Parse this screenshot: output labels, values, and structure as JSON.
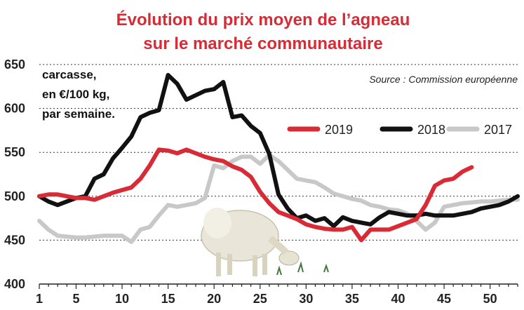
{
  "chart_data": {
    "type": "line",
    "title": "Évolution du prix moyen de l’agneau",
    "subtitle": "sur le marché communautaire",
    "unit_note": [
      "carcasse,",
      "en €/100 kg,",
      "par semaine."
    ],
    "source": "Source : Commission européenne",
    "xlim": [
      1,
      53
    ],
    "ylim": [
      400,
      650
    ],
    "x_ticks": [
      1,
      5,
      10,
      15,
      20,
      25,
      30,
      35,
      40,
      45,
      50
    ],
    "y_ticks": [
      400,
      450,
      500,
      550,
      600,
      650
    ],
    "grid": "horizontal",
    "legend_position": "top-right",
    "series": [
      {
        "name": "2017",
        "color": "#c8c8c8",
        "x": [
          1,
          2,
          3,
          4,
          5,
          6,
          7,
          8,
          9,
          10,
          11,
          12,
          13,
          14,
          15,
          16,
          17,
          18,
          19,
          20,
          21,
          22,
          23,
          24,
          25,
          26,
          27,
          28,
          29,
          30,
          31,
          32,
          33,
          34,
          35,
          36,
          37,
          38,
          39,
          40,
          41,
          42,
          43,
          44,
          45,
          46,
          47,
          48,
          49,
          50,
          51,
          52,
          53
        ],
        "values": [
          472,
          462,
          455,
          454,
          453,
          453,
          454,
          455,
          455,
          455,
          448,
          462,
          465,
          478,
          490,
          488,
          490,
          492,
          498,
          535,
          532,
          540,
          545,
          545,
          537,
          547,
          540,
          530,
          520,
          518,
          516,
          510,
          503,
          500,
          497,
          495,
          490,
          488,
          485,
          484,
          480,
          472,
          462,
          470,
          488,
          490,
          492,
          493,
          494,
          494,
          495,
          496,
          496
        ]
      },
      {
        "name": "2018",
        "color": "#111111",
        "x": [
          1,
          2,
          3,
          4,
          5,
          6,
          7,
          8,
          9,
          10,
          11,
          12,
          13,
          14,
          15,
          16,
          17,
          18,
          19,
          20,
          21,
          22,
          23,
          24,
          25,
          26,
          27,
          28,
          29,
          30,
          31,
          32,
          33,
          34,
          35,
          36,
          37,
          38,
          39,
          40,
          41,
          42,
          43,
          44,
          45,
          46,
          47,
          48,
          49,
          50,
          51,
          52,
          53
        ],
        "values": [
          500,
          494,
          490,
          494,
          498,
          500,
          520,
          525,
          543,
          555,
          568,
          590,
          595,
          598,
          638,
          628,
          610,
          615,
          620,
          622,
          630,
          590,
          592,
          580,
          572,
          548,
          502,
          486,
          475,
          478,
          472,
          475,
          466,
          476,
          472,
          470,
          468,
          476,
          482,
          480,
          478,
          478,
          480,
          478,
          478,
          478,
          480,
          482,
          486,
          488,
          490,
          494,
          500
        ]
      },
      {
        "name": "2019",
        "color": "#d92b36",
        "x": [
          1,
          2,
          3,
          4,
          5,
          6,
          7,
          8,
          9,
          10,
          11,
          12,
          13,
          14,
          15,
          16,
          17,
          18,
          19,
          20,
          21,
          22,
          23,
          24,
          25,
          26,
          27,
          28,
          29,
          30,
          31,
          32,
          33,
          34,
          35,
          36,
          37,
          38,
          39,
          40,
          41,
          42,
          43,
          44,
          45,
          46,
          47,
          48
        ],
        "values": [
          500,
          502,
          502,
          500,
          498,
          498,
          496,
          500,
          504,
          507,
          510,
          520,
          535,
          553,
          552,
          549,
          553,
          549,
          545,
          542,
          540,
          534,
          530,
          522,
          505,
          492,
          482,
          478,
          474,
          468,
          465,
          463,
          462,
          462,
          465,
          450,
          462,
          462,
          462,
          466,
          470,
          474,
          490,
          512,
          518,
          520,
          528,
          533
        ]
      }
    ]
  }
}
